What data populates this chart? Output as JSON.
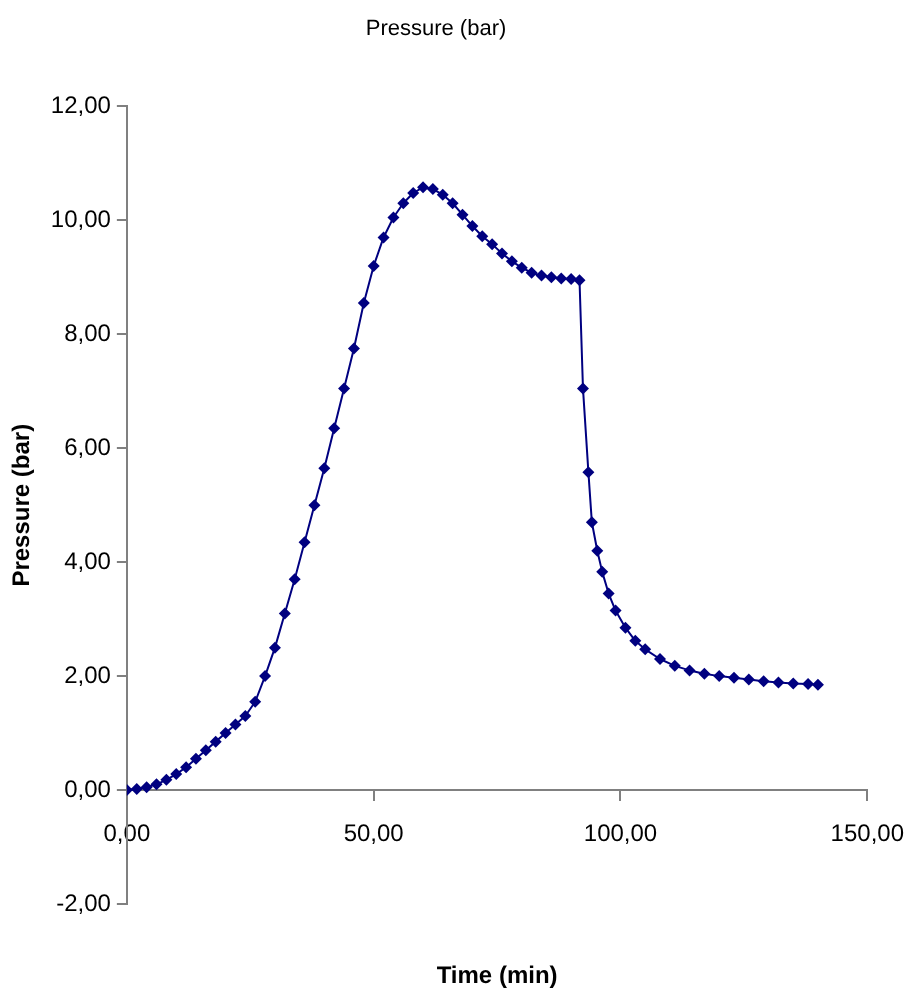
{
  "chart_data": {
    "type": "line",
    "title": "Pressure (bar)",
    "xlabel": "Time (min)",
    "ylabel": "Pressure (bar)",
    "marker": "diamond",
    "line_style": "solid",
    "grid": false,
    "legend": false,
    "xlim": [
      0,
      150
    ],
    "ylim": [
      -2,
      12
    ],
    "xticks": [
      {
        "value": 0,
        "label": "0,00"
      },
      {
        "value": 50,
        "label": "50,00"
      },
      {
        "value": 100,
        "label": "100,00"
      },
      {
        "value": 150,
        "label": "150,00"
      }
    ],
    "yticks": [
      {
        "value": -2,
        "label": "-2,00"
      },
      {
        "value": 0,
        "label": "0,00"
      },
      {
        "value": 2,
        "label": "2,00"
      },
      {
        "value": 4,
        "label": "4,00"
      },
      {
        "value": 6,
        "label": "6,00"
      },
      {
        "value": 8,
        "label": "8,00"
      },
      {
        "value": 10,
        "label": "10,00"
      },
      {
        "value": 12,
        "label": "12,00"
      }
    ],
    "series": [
      {
        "color": "#000080",
        "x": [
          0,
          2,
          4,
          6,
          8,
          10,
          12,
          14,
          16,
          18,
          20,
          22,
          24,
          26,
          28,
          30,
          32,
          34,
          36,
          38,
          40,
          42,
          44,
          46,
          48,
          50,
          52,
          54,
          56,
          58,
          60,
          62,
          64,
          66,
          68,
          70,
          72,
          74,
          76,
          78,
          80,
          82,
          84,
          86,
          88,
          90,
          91.7,
          92.4,
          93.5,
          94.2,
          95.3,
          96.3,
          97.6,
          99,
          101,
          103,
          105,
          108,
          111,
          114,
          117,
          120,
          123,
          126,
          129,
          132,
          135,
          138,
          140
        ],
        "values": [
          0,
          0.02,
          0.05,
          0.1,
          0.18,
          0.28,
          0.4,
          0.55,
          0.7,
          0.85,
          1,
          1.15,
          1.3,
          1.55,
          2,
          2.5,
          3.1,
          3.7,
          4.35,
          5,
          5.65,
          6.35,
          7.05,
          7.75,
          8.55,
          9.2,
          9.7,
          10.05,
          10.3,
          10.48,
          10.58,
          10.55,
          10.45,
          10.3,
          10.1,
          9.9,
          9.72,
          9.58,
          9.42,
          9.28,
          9.17,
          9.08,
          9.03,
          9,
          8.98,
          8.97,
          8.95,
          7.05,
          5.58,
          4.7,
          4.2,
          3.83,
          3.45,
          3.15,
          2.85,
          2.62,
          2.47,
          2.3,
          2.18,
          2.1,
          2.04,
          2,
          1.97,
          1.94,
          1.91,
          1.89,
          1.87,
          1.86,
          1.85
        ]
      }
    ]
  }
}
